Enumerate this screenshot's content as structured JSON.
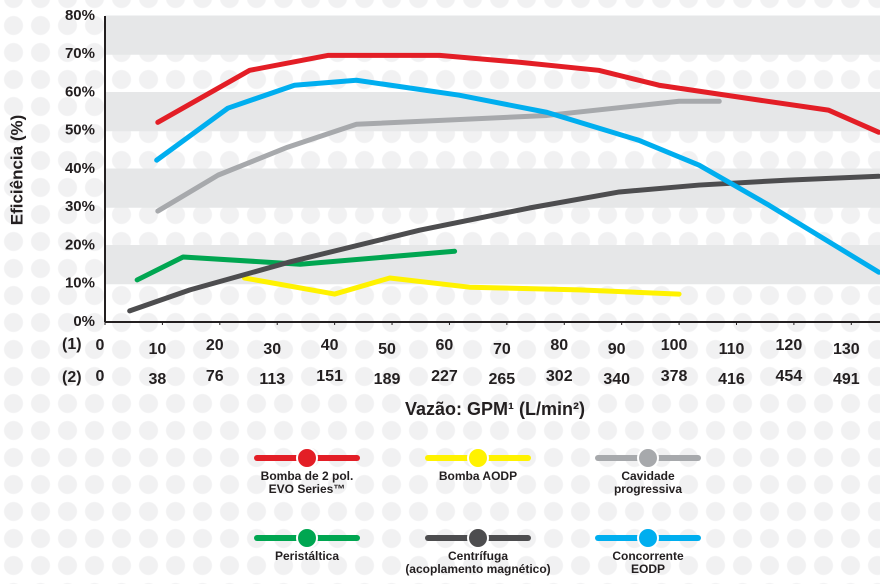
{
  "chart_data": {
    "type": "line",
    "ylabel": "Eficiência (%)",
    "xlabel": "Vazão: GPM¹ (L/min²)",
    "xlim": [
      0,
      135
    ],
    "ylim": [
      0,
      80
    ],
    "xticks": [
      0,
      10,
      20,
      30,
      40,
      50,
      60,
      70,
      80,
      90,
      100,
      110,
      120,
      130
    ],
    "xticks_lpm": [
      0,
      38,
      76,
      113,
      151,
      189,
      227,
      265,
      302,
      340,
      378,
      416,
      454,
      491
    ],
    "xtick_rows": [
      "(1)",
      "(2)"
    ],
    "yticks": [
      {
        "value": 0,
        "label": "0%"
      },
      {
        "value": 10,
        "label": "10%"
      },
      {
        "value": 20,
        "label": "20%"
      },
      {
        "value": 30,
        "label": "30%"
      },
      {
        "value": 40,
        "label": "40%"
      },
      {
        "value": 50,
        "label": "50%"
      },
      {
        "value": 60,
        "label": "60%"
      },
      {
        "value": 70,
        "label": "70%"
      },
      {
        "value": 80,
        "label": "80%"
      }
    ],
    "grid": true,
    "series": [
      {
        "name": "Bomba de 2 pol.\nEVO Series™",
        "color": "#e31e26",
        "x": [
          9.2,
          25.2,
          38.8,
          58.3,
          72.2,
          86,
          96.5,
          114,
          126,
          134.8
        ],
        "values": [
          52.2,
          65.8,
          69.7,
          69.7,
          67.9,
          65.8,
          61.9,
          58,
          55.4,
          49.6
        ]
      },
      {
        "name": "Bomba AODP",
        "color": "#fff200",
        "x": [
          24.3,
          40,
          49.6,
          63.5,
          82.6,
          100
        ],
        "values": [
          11.5,
          7.3,
          11.5,
          9.1,
          8.4,
          7.3
        ]
      },
      {
        "name": "Cavidade\nprogressiva",
        "color": "#a7a9ac",
        "x": [
          9.2,
          19.7,
          31.8,
          43.8,
          77,
          100,
          107
        ],
        "values": [
          29,
          38.4,
          45.7,
          51.7,
          54,
          57.7,
          57.7
        ]
      },
      {
        "name": "Peristáltica",
        "color": "#00a651",
        "x": [
          5.6,
          13.6,
          34,
          60.9
        ],
        "values": [
          11,
          17,
          15.1,
          18.5
        ]
      },
      {
        "name": "Centrífuga\n(acoplamento magnético)",
        "color": "#4d4d4f",
        "x": [
          4.3,
          14.8,
          32.2,
          54.8,
          73.9,
          89.6,
          103.5,
          119,
          134.8
        ],
        "values": [
          2.9,
          8.4,
          15.7,
          24,
          29.8,
          34,
          35.8,
          37.1,
          38.1
        ]
      },
      {
        "name": "Concorrente\nEODP",
        "color": "#00aeef",
        "x": [
          9,
          21.4,
          33,
          43.8,
          61.7,
          77,
          93,
          103.5,
          115.7,
          134.8
        ],
        "values": [
          42.3,
          55.9,
          61.9,
          63.2,
          59.3,
          54.8,
          47.5,
          41,
          30.5,
          13
        ]
      }
    ]
  }
}
